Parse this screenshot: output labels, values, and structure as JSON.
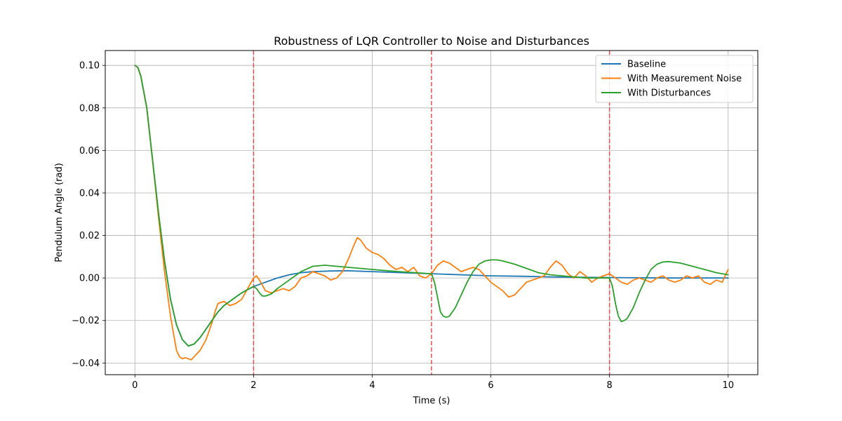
{
  "chart_data": {
    "type": "line",
    "title": "Robustness of LQR Controller to Noise and Disturbances",
    "xlabel": "Time (s)",
    "ylabel": "Pendulum Angle (rad)",
    "xlim": [
      -0.5,
      10.5
    ],
    "ylim": [
      -0.0455,
      0.107
    ],
    "x_ticks": [
      0,
      2,
      4,
      6,
      8,
      10
    ],
    "x_tick_labels": [
      "0",
      "2",
      "4",
      "6",
      "8",
      "10"
    ],
    "y_ticks": [
      -0.04,
      -0.02,
      0.0,
      0.02,
      0.04,
      0.06,
      0.08,
      0.1
    ],
    "y_tick_labels": [
      "−0.04",
      "−0.02",
      "0.00",
      "0.02",
      "0.04",
      "0.06",
      "0.08",
      "0.10"
    ],
    "grid": true,
    "legend_position": "top-right",
    "vlines": [
      {
        "x": 2,
        "color": "#e8504f",
        "style": "dashed"
      },
      {
        "x": 5,
        "color": "#e8504f",
        "style": "dashed"
      },
      {
        "x": 8,
        "color": "#e8504f",
        "style": "dashed"
      }
    ],
    "series": [
      {
        "name": "Baseline",
        "color": "#1f77b4",
        "points": [
          [
            0,
            0.1
          ],
          [
            0.05,
            0.099
          ],
          [
            0.1,
            0.095
          ],
          [
            0.2,
            0.08
          ],
          [
            0.3,
            0.055
          ],
          [
            0.4,
            0.03
          ],
          [
            0.5,
            0.008
          ],
          [
            0.6,
            -0.01
          ],
          [
            0.7,
            -0.022
          ],
          [
            0.8,
            -0.029
          ],
          [
            0.9,
            -0.032
          ],
          [
            1.0,
            -0.031
          ],
          [
            1.1,
            -0.028
          ],
          [
            1.2,
            -0.024
          ],
          [
            1.3,
            -0.02
          ],
          [
            1.4,
            -0.016
          ],
          [
            1.5,
            -0.013
          ],
          [
            1.6,
            -0.011
          ],
          [
            1.7,
            -0.009
          ],
          [
            1.8,
            -0.007
          ],
          [
            1.9,
            -0.0055
          ],
          [
            2.0,
            -0.004
          ],
          [
            2.2,
            -0.002
          ],
          [
            2.4,
            0.0
          ],
          [
            2.6,
            0.0015
          ],
          [
            2.8,
            0.0025
          ],
          [
            3.0,
            0.003
          ],
          [
            3.3,
            0.0033
          ],
          [
            3.6,
            0.0034
          ],
          [
            4.0,
            0.003
          ],
          [
            4.5,
            0.0025
          ],
          [
            5.0,
            0.002
          ],
          [
            5.5,
            0.0015
          ],
          [
            6.0,
            0.001
          ],
          [
            6.5,
            0.0008
          ],
          [
            7.0,
            0.0005
          ],
          [
            7.5,
            0.0003
          ],
          [
            8.0,
            0.0002
          ],
          [
            8.5,
            0.0001
          ],
          [
            9.0,
            0.0
          ],
          [
            10.0,
            0.0
          ]
        ]
      },
      {
        "name": "With Measurement Noise",
        "color": "#ff7f0e",
        "points": [
          [
            0,
            0.1
          ],
          [
            0.05,
            0.099
          ],
          [
            0.1,
            0.095
          ],
          [
            0.2,
            0.08
          ],
          [
            0.3,
            0.055
          ],
          [
            0.4,
            0.028
          ],
          [
            0.5,
            0.003
          ],
          [
            0.6,
            -0.018
          ],
          [
            0.7,
            -0.034
          ],
          [
            0.75,
            -0.037
          ],
          [
            0.8,
            -0.038
          ],
          [
            0.85,
            -0.0375
          ],
          [
            0.9,
            -0.038
          ],
          [
            0.95,
            -0.0385
          ],
          [
            1.0,
            -0.037
          ],
          [
            1.1,
            -0.034
          ],
          [
            1.2,
            -0.029
          ],
          [
            1.3,
            -0.021
          ],
          [
            1.35,
            -0.016
          ],
          [
            1.4,
            -0.012
          ],
          [
            1.5,
            -0.011
          ],
          [
            1.6,
            -0.013
          ],
          [
            1.7,
            -0.012
          ],
          [
            1.8,
            -0.01
          ],
          [
            1.9,
            -0.005
          ],
          [
            2.0,
            0.0
          ],
          [
            2.05,
            0.001
          ],
          [
            2.1,
            -0.001
          ],
          [
            2.2,
            -0.006
          ],
          [
            2.3,
            -0.007
          ],
          [
            2.4,
            -0.006
          ],
          [
            2.5,
            -0.005
          ],
          [
            2.6,
            -0.006
          ],
          [
            2.7,
            -0.004
          ],
          [
            2.8,
            0.0
          ],
          [
            2.9,
            0.001
          ],
          [
            3.0,
            0.003
          ],
          [
            3.1,
            0.002
          ],
          [
            3.2,
            0.001
          ],
          [
            3.3,
            -0.001
          ],
          [
            3.4,
            0.0
          ],
          [
            3.5,
            0.003
          ],
          [
            3.6,
            0.009
          ],
          [
            3.7,
            0.016
          ],
          [
            3.75,
            0.019
          ],
          [
            3.8,
            0.018
          ],
          [
            3.9,
            0.014
          ],
          [
            4.0,
            0.012
          ],
          [
            4.1,
            0.011
          ],
          [
            4.2,
            0.009
          ],
          [
            4.3,
            0.006
          ],
          [
            4.4,
            0.004
          ],
          [
            4.5,
            0.005
          ],
          [
            4.6,
            0.003
          ],
          [
            4.7,
            0.005
          ],
          [
            4.8,
            0.001
          ],
          [
            4.9,
            0.0
          ],
          [
            5.0,
            0.002
          ],
          [
            5.1,
            0.006
          ],
          [
            5.2,
            0.008
          ],
          [
            5.3,
            0.007
          ],
          [
            5.4,
            0.005
          ],
          [
            5.5,
            0.003
          ],
          [
            5.6,
            0.004
          ],
          [
            5.7,
            0.005
          ],
          [
            5.8,
            0.004
          ],
          [
            5.9,
            0.001
          ],
          [
            6.0,
            -0.002
          ],
          [
            6.1,
            -0.004
          ],
          [
            6.2,
            -0.006
          ],
          [
            6.3,
            -0.009
          ],
          [
            6.4,
            -0.008
          ],
          [
            6.5,
            -0.005
          ],
          [
            6.6,
            -0.002
          ],
          [
            6.7,
            -0.001
          ],
          [
            6.8,
            0.0
          ],
          [
            6.9,
            0.001
          ],
          [
            7.0,
            0.005
          ],
          [
            7.1,
            0.008
          ],
          [
            7.2,
            0.006
          ],
          [
            7.3,
            0.002
          ],
          [
            7.4,
            0.0
          ],
          [
            7.5,
            0.003
          ],
          [
            7.6,
            0.001
          ],
          [
            7.7,
            -0.002
          ],
          [
            7.8,
            0.0
          ],
          [
            7.9,
            0.001
          ],
          [
            8.0,
            0.002
          ],
          [
            8.1,
            0.0
          ],
          [
            8.2,
            -0.002
          ],
          [
            8.3,
            -0.003
          ],
          [
            8.4,
            -0.001
          ],
          [
            8.5,
            0.0
          ],
          [
            8.6,
            -0.001
          ],
          [
            8.7,
            -0.002
          ],
          [
            8.8,
            0.0
          ],
          [
            8.9,
            0.001
          ],
          [
            9.0,
            -0.001
          ],
          [
            9.1,
            -0.002
          ],
          [
            9.2,
            -0.001
          ],
          [
            9.3,
            0.001
          ],
          [
            9.4,
            0.0
          ],
          [
            9.5,
            0.001
          ],
          [
            9.6,
            -0.002
          ],
          [
            9.7,
            -0.003
          ],
          [
            9.8,
            -0.001
          ],
          [
            9.9,
            -0.002
          ],
          [
            10.0,
            0.004
          ]
        ]
      },
      {
        "name": "With Disturbances",
        "color": "#2ca02c",
        "points": [
          [
            0,
            0.1
          ],
          [
            0.05,
            0.099
          ],
          [
            0.1,
            0.095
          ],
          [
            0.2,
            0.08
          ],
          [
            0.3,
            0.055
          ],
          [
            0.4,
            0.03
          ],
          [
            0.5,
            0.008
          ],
          [
            0.6,
            -0.01
          ],
          [
            0.7,
            -0.022
          ],
          [
            0.8,
            -0.029
          ],
          [
            0.9,
            -0.032
          ],
          [
            1.0,
            -0.031
          ],
          [
            1.1,
            -0.028
          ],
          [
            1.2,
            -0.024
          ],
          [
            1.3,
            -0.02
          ],
          [
            1.4,
            -0.016
          ],
          [
            1.5,
            -0.013
          ],
          [
            1.6,
            -0.011
          ],
          [
            1.7,
            -0.009
          ],
          [
            1.8,
            -0.007
          ],
          [
            1.9,
            -0.0055
          ],
          [
            2.0,
            -0.004
          ],
          [
            2.05,
            -0.005
          ],
          [
            2.1,
            -0.007
          ],
          [
            2.15,
            -0.0085
          ],
          [
            2.2,
            -0.0085
          ],
          [
            2.3,
            -0.0075
          ],
          [
            2.4,
            -0.005
          ],
          [
            2.6,
            -0.001
          ],
          [
            2.8,
            0.003
          ],
          [
            3.0,
            0.0055
          ],
          [
            3.2,
            0.006
          ],
          [
            3.4,
            0.0055
          ],
          [
            3.6,
            0.005
          ],
          [
            3.8,
            0.0045
          ],
          [
            4.0,
            0.004
          ],
          [
            4.3,
            0.0033
          ],
          [
            4.6,
            0.0027
          ],
          [
            5.0,
            0.002
          ],
          [
            5.05,
            -0.002
          ],
          [
            5.1,
            -0.009
          ],
          [
            5.15,
            -0.016
          ],
          [
            5.2,
            -0.018
          ],
          [
            5.25,
            -0.0185
          ],
          [
            5.3,
            -0.018
          ],
          [
            5.4,
            -0.014
          ],
          [
            5.5,
            -0.008
          ],
          [
            5.6,
            -0.002
          ],
          [
            5.7,
            0.003
          ],
          [
            5.8,
            0.0065
          ],
          [
            5.9,
            0.008
          ],
          [
            6.0,
            0.0085
          ],
          [
            6.1,
            0.0085
          ],
          [
            6.2,
            0.008
          ],
          [
            6.4,
            0.0065
          ],
          [
            6.6,
            0.0045
          ],
          [
            6.8,
            0.0025
          ],
          [
            7.0,
            0.0015
          ],
          [
            7.2,
            0.001
          ],
          [
            7.4,
            0.0005
          ],
          [
            7.6,
            0.0
          ],
          [
            7.8,
            0.0
          ],
          [
            8.0,
            0.0
          ],
          [
            8.05,
            -0.004
          ],
          [
            8.1,
            -0.012
          ],
          [
            8.15,
            -0.018
          ],
          [
            8.2,
            -0.0205
          ],
          [
            8.25,
            -0.02
          ],
          [
            8.3,
            -0.019
          ],
          [
            8.4,
            -0.014
          ],
          [
            8.5,
            -0.007
          ],
          [
            8.6,
            -0.001
          ],
          [
            8.7,
            0.004
          ],
          [
            8.8,
            0.0065
          ],
          [
            8.9,
            0.0075
          ],
          [
            9.0,
            0.0077
          ],
          [
            9.2,
            0.007
          ],
          [
            9.4,
            0.0055
          ],
          [
            9.6,
            0.004
          ],
          [
            9.8,
            0.0025
          ],
          [
            10.0,
            0.0015
          ]
        ]
      }
    ]
  }
}
